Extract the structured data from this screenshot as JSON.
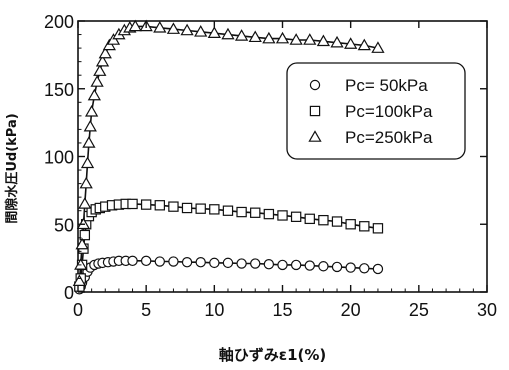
{
  "chart_data": {
    "type": "scatter",
    "xlabel": "軸ひずみε1(%)",
    "ylabel": "間隙水圧Ud(kPa)",
    "xlim": [
      0,
      30
    ],
    "ylim": [
      0,
      200
    ],
    "xticks": [
      0,
      5,
      10,
      15,
      20,
      25,
      30
    ],
    "yticks": [
      0,
      50,
      100,
      150,
      200
    ],
    "legend": "top-right",
    "series": [
      {
        "name": "Pc= 50kPa",
        "marker": "circle",
        "x": [
          0.1,
          0.2,
          0.3,
          0.5,
          0.7,
          0.9,
          1.2,
          1.5,
          1.8,
          2.2,
          2.6,
          3.0,
          3.5,
          4.0,
          5.0,
          6.0,
          7.0,
          8.0,
          9.0,
          10.0,
          11.0,
          12.0,
          13.0,
          14.0,
          15.0,
          16.0,
          17.0,
          18.0,
          19.0,
          20.0,
          21.0,
          22.0
        ],
        "y": [
          2,
          4,
          7,
          11,
          15,
          18,
          20,
          21,
          21.5,
          22,
          22.5,
          23,
          23,
          23,
          23,
          22.5,
          22.5,
          22,
          22,
          21.5,
          21.5,
          21,
          21,
          20.5,
          20,
          20,
          19.5,
          19,
          18.5,
          18,
          17.5,
          17
        ]
      },
      {
        "name": "Pc=100kPa",
        "marker": "square",
        "x": [
          0.1,
          0.2,
          0.3,
          0.4,
          0.5,
          0.6,
          0.8,
          1.0,
          1.3,
          1.6,
          2.0,
          2.5,
          3.0,
          3.5,
          4.0,
          5.0,
          6.0,
          7.0,
          8.0,
          9.0,
          10.0,
          11.0,
          12.0,
          13.0,
          14.0,
          15.0,
          16.0,
          17.0,
          18.0,
          19.0,
          20.0,
          21.0,
          22.0
        ],
        "y": [
          4,
          10,
          20,
          32,
          42,
          50,
          56,
          59,
          61,
          62,
          63,
          64,
          64.5,
          65,
          65,
          64.5,
          64,
          63,
          62,
          61.5,
          61,
          60,
          59,
          58.5,
          57.5,
          56.5,
          55.5,
          54,
          53,
          52,
          50,
          48.5,
          47
        ]
      },
      {
        "name": "Pc=250kPa",
        "marker": "triangle",
        "x": [
          0.1,
          0.2,
          0.3,
          0.4,
          0.5,
          0.6,
          0.7,
          0.8,
          0.9,
          1.0,
          1.2,
          1.4,
          1.6,
          1.8,
          2.0,
          2.3,
          2.6,
          3.0,
          3.4,
          3.8,
          4.2,
          5.0,
          6.0,
          7.0,
          8.0,
          9.0,
          10.0,
          11.0,
          12.0,
          13.0,
          14.0,
          15.0,
          16.0,
          17.0,
          18.0,
          19.0,
          20.0,
          21.0,
          22.0
        ],
        "y": [
          8,
          20,
          35,
          50,
          65,
          80,
          95,
          110,
          122,
          133,
          145,
          155,
          163,
          170,
          176,
          182,
          186,
          190,
          193,
          195,
          196,
          196,
          195,
          194,
          193,
          192,
          191,
          190,
          189,
          188,
          187,
          187,
          186,
          186,
          185,
          184,
          183,
          182,
          180
        ]
      }
    ]
  }
}
